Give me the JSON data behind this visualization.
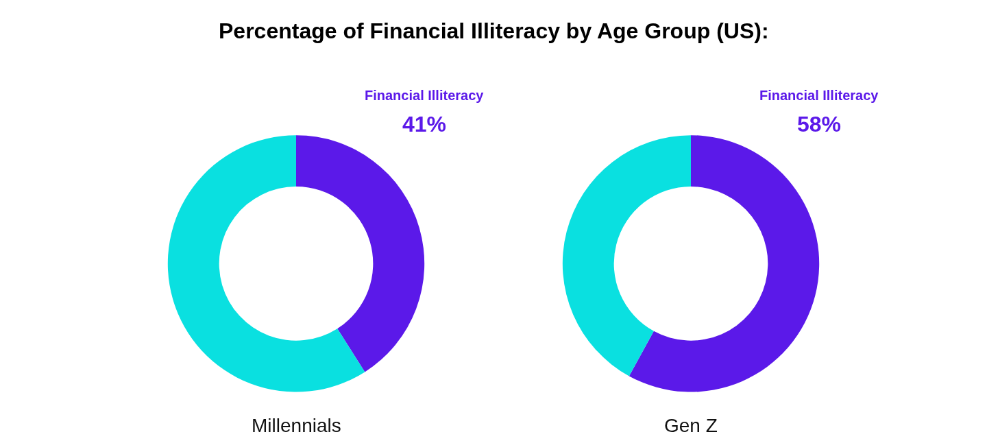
{
  "chart_data": [
    {
      "type": "donut",
      "title": "Percentage of Financial Illiteracy by Age Group (US):",
      "xlabel": "Millennials",
      "categories": [
        "Financial Illiteracy",
        null
      ],
      "values": [
        41,
        59
      ],
      "colors": [
        "#5b19e9",
        "#0ae0e0"
      ],
      "value_labels": [
        "41%",
        null
      ]
    },
    {
      "type": "donut",
      "xlabel": "Gen Z",
      "categories": [
        "Financial Illiteracy",
        null
      ],
      "values": [
        58,
        42
      ],
      "colors": [
        "#5b19e9",
        "#0ae0e0"
      ],
      "value_labels": [
        "58%",
        null
      ]
    }
  ]
}
